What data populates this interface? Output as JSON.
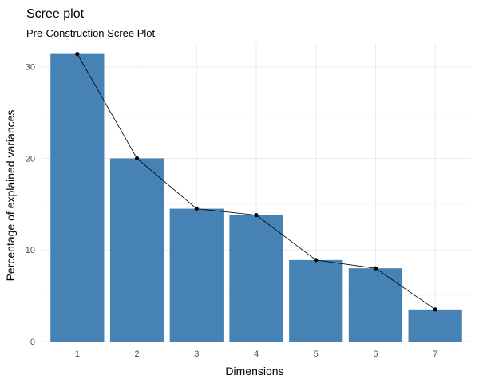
{
  "chart_data": {
    "type": "bar",
    "title": "Scree plot",
    "subtitle": "Pre-Construction Scree Plot",
    "xlabel": "Dimensions",
    "ylabel": "Percentage of explained variances",
    "categories": [
      "1",
      "2",
      "3",
      "4",
      "5",
      "6",
      "7"
    ],
    "values": [
      31.4,
      20.0,
      14.5,
      13.8,
      8.9,
      8.0,
      3.5
    ],
    "overlay": "line-with-points",
    "ylim": [
      0,
      32.5
    ],
    "yticks": [
      0,
      10,
      20,
      30
    ],
    "grid": true,
    "colors": {
      "bar": "#4682b4",
      "line": "#000000",
      "point": "#000000"
    }
  }
}
